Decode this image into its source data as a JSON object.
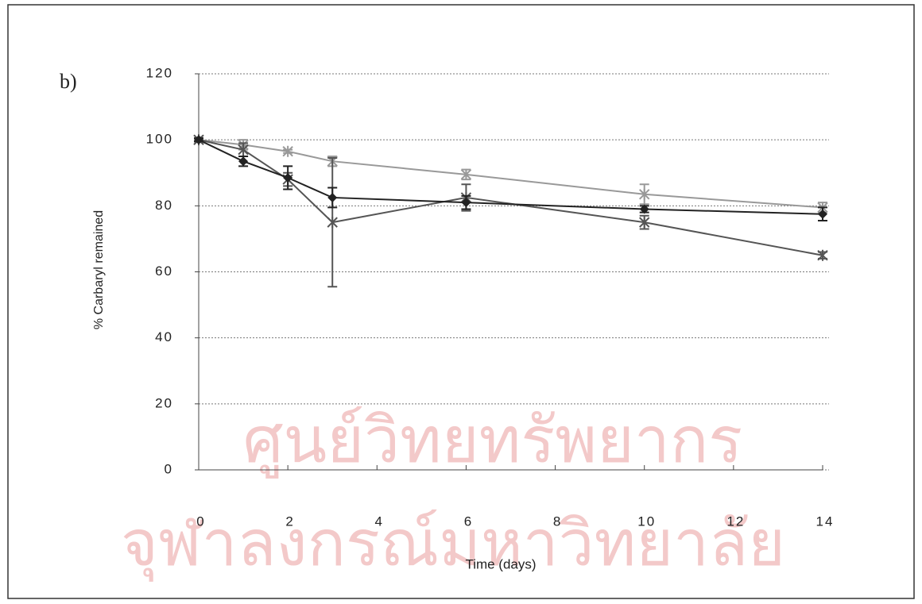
{
  "chart_data": {
    "type": "line",
    "panel_label": "b)",
    "watermark": [
      "ศูนย์วิทยทรัพยากร",
      "จุฬาลงกรณ์มหาวิทยาลัย"
    ],
    "xlabel": "Time (days)",
    "ylabel": "% Carbaryl remained",
    "x": [
      0,
      1,
      2,
      3,
      6,
      10,
      14
    ],
    "series": [
      {
        "color": "#222222",
        "values": [
          100,
          93.5,
          88.5,
          82.5,
          81,
          79,
          77.5
        ],
        "errors": [
          0.5,
          1.5,
          3.5,
          3,
          2,
          1,
          2
        ]
      },
      {
        "color": "#555555",
        "values": [
          100,
          97,
          88,
          75,
          82.5,
          75,
          65
        ],
        "errors": [
          0.5,
          2,
          2,
          19.5,
          4,
          2,
          1
        ]
      },
      {
        "color": "#999999",
        "values": [
          100,
          98.5,
          96.5,
          93.5,
          89.5,
          83.5,
          79.5
        ],
        "errors": [
          0.5,
          1.5,
          0.5,
          1.5,
          1.5,
          3,
          1.5
        ]
      }
    ],
    "xlim": [
      0,
      14
    ],
    "xticks": [
      0,
      2,
      4,
      6,
      8,
      10,
      12,
      14
    ],
    "ylim": [
      0,
      120
    ],
    "yticks": [
      0,
      20,
      40,
      60,
      80,
      100,
      120
    ],
    "grid": true
  }
}
